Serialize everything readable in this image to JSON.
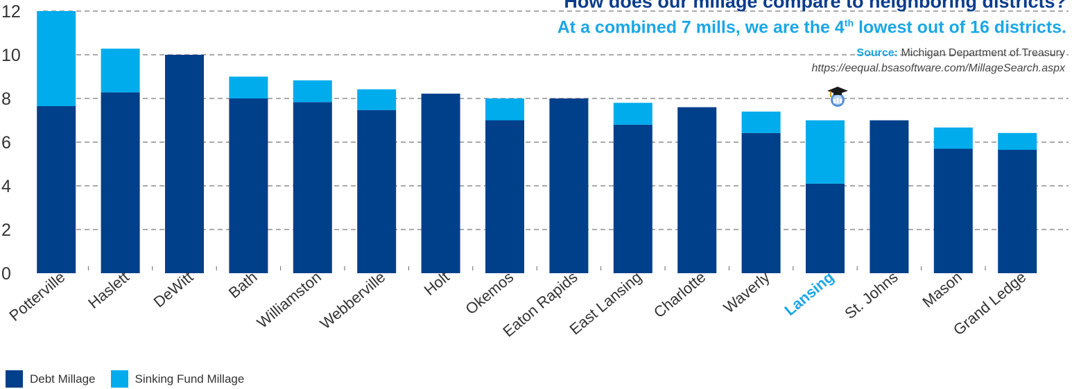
{
  "title": {
    "line1": "How does our millage compare to neighboring districts?",
    "line2_pre": "At a combined 7 mills, we are the 4",
    "line2_sup": "th",
    "line2_post": " lowest out of 16 districts."
  },
  "source": {
    "label": "Source:",
    "text": " Michigan Department of Treasury",
    "url": "https://eequal.bsasoftware.com/MillageSearch.aspx"
  },
  "colors": {
    "debt": "#003f8a",
    "sinking": "#00acec",
    "highlight_label": "#1ba7e6",
    "grid": "#555555",
    "axis_text": "#333333"
  },
  "legend": {
    "debt_label": "Debt Millage",
    "sinking_label": "Sinking Fund Millage"
  },
  "icon": "graduation-cap-icon",
  "chart_data": {
    "type": "bar",
    "stacked": true,
    "categories": [
      "Potterville",
      "Haslett",
      "DeWitt",
      "Bath",
      "Williamston",
      "Webberville",
      "Holt",
      "Okemos",
      "Eaton Rapids",
      "East Lansing",
      "Charlotte",
      "Waverly",
      "Lansing",
      "St. Johns",
      "Mason",
      "Grand Ledge"
    ],
    "highlight_category": "Lansing",
    "series": [
      {
        "name": "Debt Millage",
        "values": [
          7.65,
          8.28,
          10.0,
          8.0,
          7.83,
          7.47,
          8.22,
          7.0,
          8.0,
          6.8,
          7.6,
          6.42,
          4.1,
          7.0,
          5.7,
          5.65
        ]
      },
      {
        "name": "Sinking Fund Millage",
        "values": [
          4.35,
          2.0,
          0.0,
          1.0,
          1.0,
          0.95,
          0.0,
          1.0,
          0.0,
          1.0,
          0.0,
          0.98,
          2.9,
          0.0,
          0.97,
          0.77
        ]
      }
    ],
    "ylim": [
      0,
      12
    ],
    "yticks": [
      "0",
      "2",
      "4",
      "6",
      "8",
      "10",
      "12"
    ],
    "grid": true
  }
}
